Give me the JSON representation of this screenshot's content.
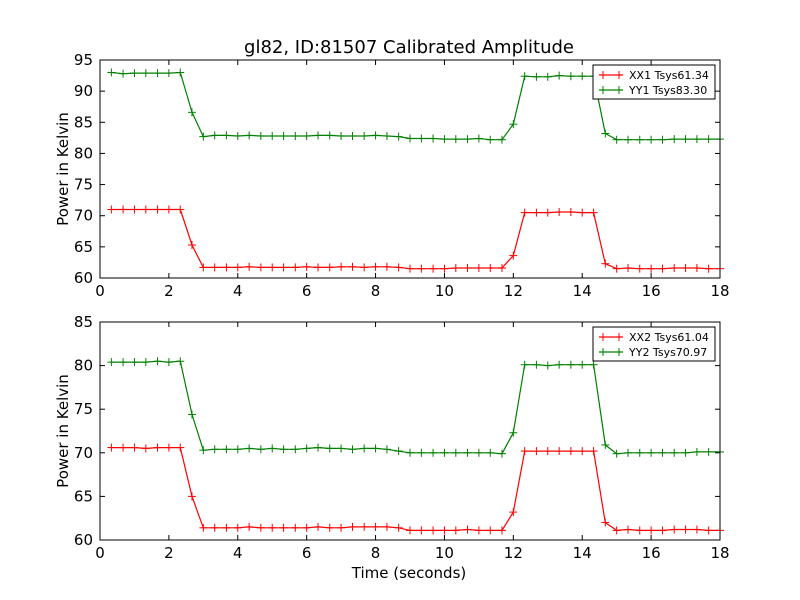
{
  "figure": {
    "title": "gl82, ID:81507 Calibrated Amplitude",
    "x_label": "Time (seconds)"
  },
  "chart_data": [
    {
      "type": "line",
      "title": "gl82, ID:81507 Calibrated Amplitude",
      "xlabel": "",
      "ylabel": "Power in Kelvin",
      "xlim": [
        0,
        18
      ],
      "ylim": [
        60,
        95
      ],
      "xticks": [
        "0",
        "2",
        "4",
        "6",
        "8",
        "10",
        "12",
        "14",
        "16",
        "18"
      ],
      "yticks": [
        "60",
        "65",
        "70",
        "75",
        "80",
        "85",
        "90",
        "95"
      ],
      "grid": false,
      "legend_position": "top-right",
      "x": [
        0.33,
        0.67,
        1.0,
        1.33,
        1.67,
        2.0,
        2.33,
        2.67,
        3.0,
        3.33,
        3.67,
        4.0,
        4.33,
        4.67,
        5.0,
        5.33,
        5.67,
        6.0,
        6.33,
        6.67,
        7.0,
        7.33,
        7.67,
        8.0,
        8.33,
        8.67,
        9.0,
        9.33,
        9.67,
        10.0,
        10.33,
        10.67,
        11.0,
        11.33,
        11.67,
        12.0,
        12.33,
        12.67,
        13.0,
        13.33,
        13.67,
        14.0,
        14.33,
        14.67,
        15.0,
        15.33,
        15.67,
        16.0,
        16.33,
        16.67,
        17.0,
        17.33,
        17.67,
        18.0
      ],
      "series": [
        {
          "name": "XX1 Tsys61.34",
          "color": "#ff0000",
          "values": [
            71.0,
            71.0,
            71.0,
            71.0,
            71.0,
            71.0,
            71.0,
            65.3,
            61.7,
            61.7,
            61.7,
            61.7,
            61.8,
            61.7,
            61.7,
            61.7,
            61.7,
            61.8,
            61.7,
            61.7,
            61.8,
            61.8,
            61.7,
            61.8,
            61.8,
            61.7,
            61.5,
            61.5,
            61.5,
            61.5,
            61.6,
            61.6,
            61.6,
            61.6,
            61.6,
            63.6,
            70.5,
            70.5,
            70.5,
            70.6,
            70.6,
            70.5,
            70.5,
            62.3,
            61.5,
            61.6,
            61.5,
            61.5,
            61.5,
            61.6,
            61.6,
            61.6,
            61.5,
            61.5
          ]
        },
        {
          "name": "YY1 Tsys83.30",
          "color": "#008000",
          "values": [
            93.0,
            92.8,
            92.9,
            92.9,
            92.9,
            92.9,
            93.0,
            86.6,
            82.7,
            82.9,
            82.9,
            82.8,
            82.9,
            82.8,
            82.8,
            82.8,
            82.8,
            82.8,
            82.9,
            82.9,
            82.8,
            82.8,
            82.8,
            82.9,
            82.8,
            82.7,
            82.4,
            82.4,
            82.4,
            82.3,
            82.3,
            82.3,
            82.4,
            82.2,
            82.2,
            84.7,
            92.4,
            92.3,
            92.3,
            92.5,
            92.4,
            92.4,
            92.4,
            83.2,
            82.2,
            82.2,
            82.2,
            82.2,
            82.2,
            82.3,
            82.3,
            82.3,
            82.3,
            82.3
          ]
        }
      ]
    },
    {
      "type": "line",
      "title": "",
      "xlabel": "Time (seconds)",
      "ylabel": "Power in Kelvin",
      "xlim": [
        0,
        18
      ],
      "ylim": [
        60,
        85
      ],
      "xticks": [
        "0",
        "2",
        "4",
        "6",
        "8",
        "10",
        "12",
        "14",
        "16",
        "18"
      ],
      "yticks": [
        "60",
        "65",
        "70",
        "75",
        "80",
        "85"
      ],
      "grid": false,
      "legend_position": "top-right",
      "x": [
        0.33,
        0.67,
        1.0,
        1.33,
        1.67,
        2.0,
        2.33,
        2.67,
        3.0,
        3.33,
        3.67,
        4.0,
        4.33,
        4.67,
        5.0,
        5.33,
        5.67,
        6.0,
        6.33,
        6.67,
        7.0,
        7.33,
        7.67,
        8.0,
        8.33,
        8.67,
        9.0,
        9.33,
        9.67,
        10.0,
        10.33,
        10.67,
        11.0,
        11.33,
        11.67,
        12.0,
        12.33,
        12.67,
        13.0,
        13.33,
        13.67,
        14.0,
        14.33,
        14.67,
        15.0,
        15.33,
        15.67,
        16.0,
        16.33,
        16.67,
        17.0,
        17.33,
        17.67,
        18.0
      ],
      "series": [
        {
          "name": "XX2 Tsys61.04",
          "color": "#ff0000",
          "values": [
            70.6,
            70.6,
            70.6,
            70.5,
            70.6,
            70.6,
            70.6,
            65.0,
            61.4,
            61.4,
            61.4,
            61.4,
            61.5,
            61.4,
            61.4,
            61.4,
            61.4,
            61.4,
            61.5,
            61.4,
            61.4,
            61.5,
            61.5,
            61.5,
            61.5,
            61.4,
            61.1,
            61.1,
            61.1,
            61.1,
            61.1,
            61.2,
            61.1,
            61.1,
            61.1,
            63.2,
            70.2,
            70.2,
            70.2,
            70.2,
            70.2,
            70.2,
            70.2,
            62.0,
            61.1,
            61.2,
            61.1,
            61.1,
            61.1,
            61.2,
            61.2,
            61.2,
            61.1,
            61.1
          ]
        },
        {
          "name": "YY2 Tsys70.97",
          "color": "#008000",
          "values": [
            80.4,
            80.4,
            80.4,
            80.4,
            80.5,
            80.4,
            80.5,
            74.4,
            70.3,
            70.4,
            70.4,
            70.4,
            70.5,
            70.4,
            70.5,
            70.4,
            70.4,
            70.5,
            70.6,
            70.5,
            70.5,
            70.4,
            70.5,
            70.5,
            70.4,
            70.2,
            70.0,
            70.0,
            70.0,
            70.0,
            70.0,
            70.0,
            70.0,
            70.0,
            69.9,
            72.3,
            80.1,
            80.1,
            80.0,
            80.1,
            80.1,
            80.1,
            80.1,
            70.9,
            69.9,
            70.0,
            70.0,
            70.0,
            70.0,
            70.0,
            70.0,
            70.1,
            70.1,
            70.1
          ]
        }
      ]
    }
  ]
}
